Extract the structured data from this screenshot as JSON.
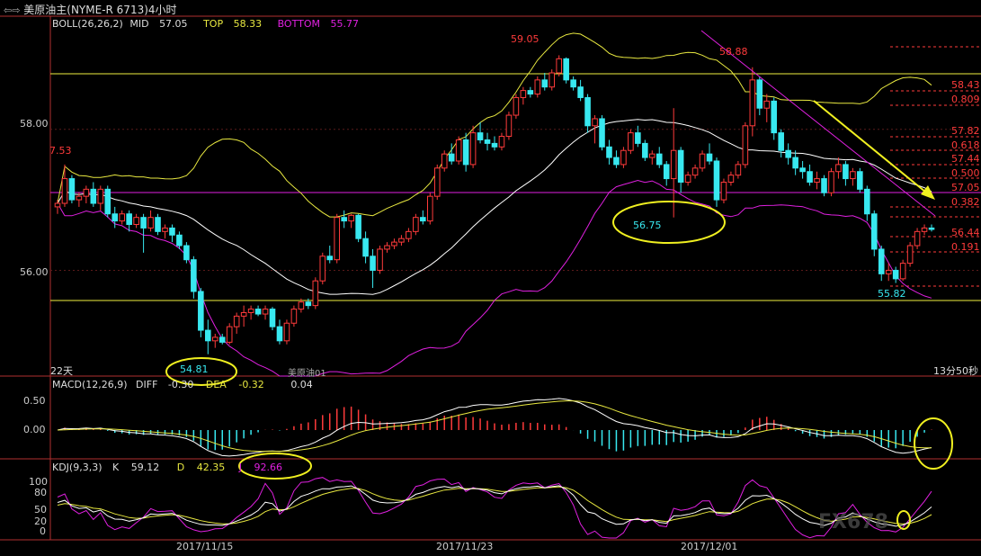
{
  "window": {
    "title": "美原油主(NYME-R 6713)4小时",
    "arrow_icon": "double-arrow-icon"
  },
  "boll": {
    "label": "BOLL(26,26,2)",
    "mid_label": "MID",
    "mid": "57.05",
    "top_label": "TOP",
    "top": "58.33",
    "bottom_label": "BOTTOM",
    "bottom": "55.77"
  },
  "macd": {
    "label": "MACD(12,26,9)",
    "diff_label": "DIFF",
    "diff": "-0.30",
    "dea_label": "DEA",
    "dea": "-0.32",
    "macd_val": "0.04"
  },
  "kdj": {
    "label": "KDJ(9,3,3)",
    "k_label": "K",
    "k": "59.12",
    "d_label": "D",
    "d": "42.35",
    "j_label": "J",
    "j": "92.66"
  },
  "price_axis": [
    "58.00",
    "56.00"
  ],
  "macd_axis": [
    "0.50",
    "0.00"
  ],
  "kdj_axis": [
    "100",
    "80",
    "50",
    "20",
    "0"
  ],
  "dates": [
    "2017/11/15",
    "2017/11/23",
    "2017/12/01"
  ],
  "annotations": {
    "left_price": "7.53",
    "high1": "59.05",
    "high2": "58.88",
    "low1": "54.81",
    "low2": "56.75",
    "low3": "55.82",
    "period": "22天",
    "instrument": "美原油01",
    "timer": "13分50秒"
  },
  "fib_levels": [
    {
      "label": "58.43"
    },
    {
      "label": "0.809"
    },
    {
      "label": "57.82"
    },
    {
      "label": "0.618"
    },
    {
      "label": "57.44"
    },
    {
      "label": "0.500"
    },
    {
      "label": "57.05"
    },
    {
      "label": "0.382"
    },
    {
      "label": "56.44"
    },
    {
      "label": "0.191"
    }
  ],
  "watermark": "FX678",
  "colors": {
    "up": "#ff3b3b",
    "down": "#38e8f0",
    "mid_line": "#ffffff",
    "top_line": "#e8e840",
    "bottom_line": "#e020e0",
    "hline": "#f0f040",
    "annot": "#f0f020",
    "fib_red": "#ff3b3b"
  },
  "chart_data": {
    "type": "candlestick",
    "ylim": [
      54.5,
      59.4
    ],
    "candles": [
      [
        56.9,
        57.0,
        56.8,
        56.95
      ],
      [
        56.95,
        57.5,
        56.9,
        57.3
      ],
      [
        57.3,
        57.35,
        56.95,
        57.0
      ],
      [
        57.0,
        57.1,
        56.9,
        57.05
      ],
      [
        57.05,
        57.2,
        56.95,
        57.15
      ],
      [
        57.15,
        57.25,
        56.9,
        56.95
      ],
      [
        56.95,
        57.2,
        56.85,
        57.15
      ],
      [
        57.15,
        57.2,
        56.75,
        56.8
      ],
      [
        56.8,
        56.9,
        56.6,
        56.7
      ],
      [
        56.7,
        56.85,
        56.65,
        56.8
      ],
      [
        56.8,
        56.85,
        56.55,
        56.65
      ],
      [
        56.65,
        56.8,
        56.6,
        56.75
      ],
      [
        56.75,
        56.8,
        56.25,
        56.6
      ],
      [
        56.6,
        56.85,
        56.55,
        56.75
      ],
      [
        56.75,
        56.8,
        56.5,
        56.55
      ],
      [
        56.55,
        56.65,
        56.45,
        56.6
      ],
      [
        56.6,
        56.65,
        56.4,
        56.5
      ],
      [
        56.5,
        56.55,
        56.3,
        56.35
      ],
      [
        56.35,
        56.4,
        56.1,
        56.15
      ],
      [
        56.15,
        56.2,
        55.6,
        55.7
      ],
      [
        55.7,
        55.75,
        55.05,
        55.15
      ],
      [
        55.15,
        55.3,
        54.81,
        55.0
      ],
      [
        55.0,
        55.1,
        54.9,
        55.05
      ],
      [
        55.05,
        55.1,
        54.95,
        54.98
      ],
      [
        54.98,
        55.25,
        54.95,
        55.2
      ],
      [
        55.2,
        55.4,
        55.1,
        55.35
      ],
      [
        55.35,
        55.5,
        55.2,
        55.4
      ],
      [
        55.4,
        55.5,
        55.3,
        55.45
      ],
      [
        55.45,
        55.5,
        55.35,
        55.38
      ],
      [
        55.38,
        55.5,
        55.3,
        55.45
      ],
      [
        55.45,
        55.48,
        55.15,
        55.2
      ],
      [
        55.2,
        55.3,
        54.95,
        55.0
      ],
      [
        55.0,
        55.3,
        54.95,
        55.25
      ],
      [
        55.25,
        55.5,
        55.2,
        55.45
      ],
      [
        55.45,
        55.6,
        55.4,
        55.55
      ],
      [
        55.55,
        55.6,
        55.45,
        55.5
      ],
      [
        55.5,
        55.9,
        55.45,
        55.85
      ],
      [
        55.85,
        56.25,
        55.8,
        56.2
      ],
      [
        56.2,
        56.35,
        56.1,
        56.15
      ],
      [
        56.15,
        56.8,
        56.1,
        56.75
      ],
      [
        56.75,
        56.85,
        56.6,
        56.7
      ],
      [
        56.7,
        56.8,
        56.6,
        56.78
      ],
      [
        56.78,
        56.8,
        56.4,
        56.45
      ],
      [
        56.45,
        56.55,
        56.1,
        56.2
      ],
      [
        56.2,
        56.3,
        55.75,
        56.0
      ],
      [
        56.0,
        56.35,
        55.95,
        56.3
      ],
      [
        56.3,
        56.4,
        56.25,
        56.35
      ],
      [
        56.35,
        56.45,
        56.3,
        56.4
      ],
      [
        56.4,
        56.5,
        56.35,
        56.45
      ],
      [
        56.45,
        56.6,
        56.4,
        56.55
      ],
      [
        56.55,
        56.8,
        56.5,
        56.75
      ],
      [
        56.75,
        56.85,
        56.65,
        56.7
      ],
      [
        56.7,
        57.1,
        56.65,
        57.05
      ],
      [
        57.05,
        57.5,
        57.0,
        57.45
      ],
      [
        57.45,
        57.7,
        57.4,
        57.65
      ],
      [
        57.65,
        57.8,
        57.5,
        57.55
      ],
      [
        57.55,
        57.9,
        57.5,
        57.85
      ],
      [
        57.85,
        57.95,
        57.4,
        57.5
      ],
      [
        57.5,
        58.05,
        57.45,
        57.95
      ],
      [
        57.95,
        58.1,
        57.8,
        57.85
      ],
      [
        57.85,
        57.95,
        57.7,
        57.8
      ],
      [
        57.8,
        57.9,
        57.7,
        57.75
      ],
      [
        57.75,
        57.95,
        57.7,
        57.9
      ],
      [
        57.9,
        58.25,
        57.85,
        58.2
      ],
      [
        58.2,
        58.5,
        58.15,
        58.45
      ],
      [
        58.45,
        58.6,
        58.35,
        58.55
      ],
      [
        58.55,
        58.6,
        58.45,
        58.5
      ],
      [
        58.5,
        58.75,
        58.45,
        58.7
      ],
      [
        58.7,
        58.8,
        58.55,
        58.6
      ],
      [
        58.6,
        58.85,
        58.55,
        58.8
      ],
      [
        58.8,
        59.05,
        58.75,
        59.0
      ],
      [
        59.0,
        59.02,
        58.65,
        58.7
      ],
      [
        58.7,
        58.75,
        58.55,
        58.6
      ],
      [
        58.6,
        58.7,
        58.4,
        58.45
      ],
      [
        58.45,
        58.5,
        57.95,
        58.05
      ],
      [
        58.05,
        58.2,
        57.8,
        58.15
      ],
      [
        58.15,
        58.2,
        57.7,
        57.75
      ],
      [
        57.75,
        57.85,
        57.5,
        57.6
      ],
      [
        57.6,
        57.7,
        57.45,
        57.5
      ],
      [
        57.5,
        57.75,
        57.45,
        57.7
      ],
      [
        57.7,
        58.0,
        57.65,
        57.95
      ],
      [
        57.95,
        58.05,
        57.75,
        57.8
      ],
      [
        57.8,
        57.85,
        57.55,
        57.6
      ],
      [
        57.6,
        57.7,
        57.5,
        57.65
      ],
      [
        57.65,
        57.75,
        57.45,
        57.5
      ],
      [
        57.5,
        57.55,
        57.2,
        57.3
      ],
      [
        57.3,
        58.3,
        56.75,
        57.7
      ],
      [
        57.7,
        57.75,
        57.1,
        57.25
      ],
      [
        57.25,
        57.4,
        57.2,
        57.35
      ],
      [
        57.35,
        57.5,
        57.3,
        57.45
      ],
      [
        57.45,
        57.7,
        57.4,
        57.65
      ],
      [
        57.65,
        57.8,
        57.5,
        57.55
      ],
      [
        57.55,
        57.6,
        56.9,
        57.0
      ],
      [
        57.0,
        57.3,
        56.95,
        57.25
      ],
      [
        57.25,
        57.4,
        57.2,
        57.35
      ],
      [
        57.35,
        57.55,
        57.3,
        57.5
      ],
      [
        57.5,
        58.1,
        57.45,
        58.05
      ],
      [
        58.05,
        58.88,
        57.9,
        58.7
      ],
      [
        58.7,
        58.75,
        58.2,
        58.3
      ],
      [
        58.3,
        58.5,
        58.1,
        58.4
      ],
      [
        58.4,
        58.45,
        57.85,
        57.95
      ],
      [
        57.95,
        58.0,
        57.6,
        57.7
      ],
      [
        57.7,
        57.8,
        57.5,
        57.6
      ],
      [
        57.6,
        57.7,
        57.35,
        57.45
      ],
      [
        57.45,
        57.55,
        57.3,
        57.4
      ],
      [
        57.4,
        57.5,
        57.2,
        57.25
      ],
      [
        57.25,
        57.4,
        57.15,
        57.3
      ],
      [
        57.3,
        57.35,
        57.05,
        57.1
      ],
      [
        57.1,
        57.45,
        57.05,
        57.4
      ],
      [
        57.4,
        57.6,
        57.3,
        57.5
      ],
      [
        57.5,
        57.55,
        57.2,
        57.3
      ],
      [
        57.3,
        57.45,
        57.2,
        57.4
      ],
      [
        57.4,
        57.45,
        57.1,
        57.15
      ],
      [
        57.15,
        57.2,
        56.7,
        56.8
      ],
      [
        56.8,
        56.85,
        56.2,
        56.3
      ],
      [
        56.3,
        56.35,
        55.85,
        55.95
      ],
      [
        55.95,
        56.1,
        55.85,
        56.0
      ],
      [
        56.0,
        56.05,
        55.82,
        55.88
      ],
      [
        55.88,
        56.15,
        55.85,
        56.1
      ],
      [
        56.1,
        56.4,
        56.05,
        56.35
      ],
      [
        56.35,
        56.6,
        56.3,
        56.55
      ],
      [
        56.55,
        56.65,
        56.5,
        56.6
      ],
      [
        56.6,
        56.65,
        56.55,
        56.58
      ]
    ]
  }
}
